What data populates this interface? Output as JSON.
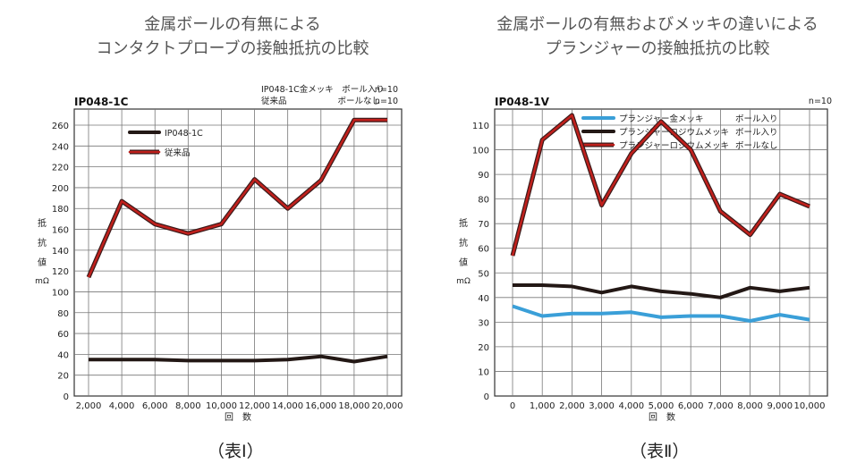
{
  "headings": {
    "left": [
      "金属ボールの有無による",
      "コンタクトプローブの接触抵抗の比較"
    ],
    "right": [
      "金属ボールの有無およびメッキの違いによる",
      "プランジャーの接触抵抗の比較"
    ]
  },
  "captions": {
    "left": "（表Ⅰ）",
    "right": "（表Ⅱ）"
  },
  "colors": {
    "black": "#231815",
    "red": "#c0201c",
    "blue": "#3a9fd8",
    "grid": "#777777"
  },
  "chart_data": [
    {
      "type": "line",
      "title": "IP048-1C",
      "xlabel": "回　数",
      "ylabel": [
        "抵",
        "抗",
        "値",
        "mΩ"
      ],
      "ylim": [
        0,
        260
      ],
      "yticks": [
        "0",
        "20",
        "40",
        "60",
        "80",
        "100",
        "120",
        "140",
        "160",
        "180",
        "200",
        "220",
        "240",
        "260"
      ],
      "grid": true,
      "legend_position": "top-left",
      "note_lines": [
        {
          "text": "IP048-1C金メッキ　ボール入り",
          "n": "n=10"
        },
        {
          "text": "従来品　　　　　　ボールなし",
          "n": "n=10"
        }
      ],
      "categories": [
        "2,000",
        "4,000",
        "6,000",
        "8,000",
        "10,000",
        "12,000",
        "14,000",
        "16,000",
        "18,000",
        "20,000"
      ],
      "series": [
        {
          "name": "IP048-1C",
          "color": "black",
          "values": [
            35,
            35,
            35,
            34,
            34,
            34,
            35,
            38,
            33,
            38
          ]
        },
        {
          "name": "従来品",
          "color": "red",
          "values": [
            114,
            187,
            165,
            156,
            165,
            208,
            180,
            207,
            265,
            265
          ]
        }
      ]
    },
    {
      "type": "line",
      "title": "IP048-1V",
      "xlabel": "回　数",
      "ylabel": [
        "抵",
        "抗",
        "値",
        "mΩ"
      ],
      "ylim": [
        0,
        110
      ],
      "yticks": [
        "0",
        "10",
        "20",
        "30",
        "40",
        "50",
        "60",
        "70",
        "80",
        "90",
        "100",
        "110"
      ],
      "grid": true,
      "legend_position": "top-left",
      "note_lines": [
        {
          "text": "",
          "n": "n=10"
        }
      ],
      "categories": [
        "0",
        "1,000",
        "2,000",
        "3,000",
        "4,000",
        "5,000",
        "6,000",
        "7,000",
        "8,000",
        "9,000",
        "10,000"
      ],
      "series": [
        {
          "name": "プランジャー金メッキ",
          "tag": "ボール入り",
          "color": "blue",
          "values": [
            36.5,
            32.5,
            33.5,
            33.5,
            34,
            32,
            32.5,
            32.5,
            30.5,
            33,
            31
          ]
        },
        {
          "name": "プランジャーロジウムメッキ",
          "tag": "ボール入り",
          "color": "black",
          "values": [
            45,
            45,
            44.5,
            42,
            44.5,
            42.5,
            41.5,
            40,
            44,
            42.5,
            44
          ]
        },
        {
          "name": "プランジャーロジウムメッキ",
          "tag": "ボールなし",
          "color": "red",
          "values": [
            57,
            104,
            114,
            77.5,
            98.5,
            111.5,
            100,
            75,
            65.5,
            82,
            77
          ]
        }
      ]
    }
  ]
}
